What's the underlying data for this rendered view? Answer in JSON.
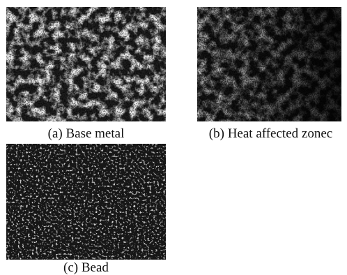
{
  "figure": {
    "panels": [
      {
        "label": "(a) Base metal"
      },
      {
        "label": "(b) Heat affected zonec"
      },
      {
        "label": "(c) Bead"
      }
    ]
  },
  "colors": {
    "background": "#ffffff",
    "caption_text": "#111111",
    "light_grain": "#e9e9e9",
    "dark_phase": "#1e1e1e"
  }
}
